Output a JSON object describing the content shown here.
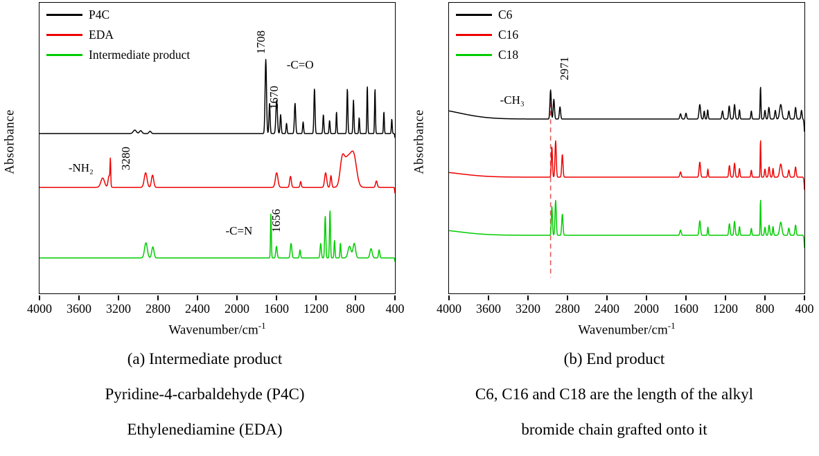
{
  "figure": {
    "background": "#ffffff",
    "panels": [
      {
        "key": "a",
        "ylabel": "Absorbance",
        "xlabel_base": "Wavenumber/cm",
        "xlabel_sup": "-1",
        "captions": [
          "(a) Intermediate product",
          "Pyridine-4-carbaldehyde (P4C)",
          "Ethylenediamine (EDA)"
        ]
      },
      {
        "key": "b",
        "ylabel": "Absorbance",
        "xlabel_base": "Wavenumber/cm",
        "xlabel_sup": "-1",
        "captions": [
          "(b) End product",
          "C6, C16 and C18 are the length of the alkyl",
          "bromide chain grafted onto it"
        ]
      }
    ]
  },
  "chart_data": [
    {
      "type": "line",
      "title": "(a) Intermediate product",
      "xlabel": "Wavenumber/cm-1",
      "ylabel": "Absorbance",
      "x_axis": {
        "min": 400,
        "max": 4000,
        "reversed": true,
        "ticks": [
          4000,
          3600,
          3200,
          2800,
          2400,
          2000,
          1600,
          1200,
          800,
          400
        ]
      },
      "y_axis": {
        "label": "Absorbance",
        "ticks_visible": false
      },
      "legend_position": "top-left",
      "grid": false,
      "peak_format": "[center_wavenumber_cm-1, relative_height_fraction_of_plot, width_cm-1]",
      "series": [
        {
          "name": "P4C",
          "color": "#000000",
          "baseline": 0.45,
          "peaks": [
            [
              3035,
              0.012,
              22
            ],
            [
              2975,
              0.01,
              18
            ],
            [
              2880,
              0.008,
              15
            ],
            [
              1708,
              0.255,
              10
            ],
            [
              1670,
              0.105,
              8
            ],
            [
              1598,
              0.115,
              11
            ],
            [
              1558,
              0.065,
              8
            ],
            [
              1498,
              0.035,
              7
            ],
            [
              1412,
              0.105,
              9
            ],
            [
              1330,
              0.04,
              7
            ],
            [
              1215,
              0.155,
              8
            ],
            [
              1125,
              0.065,
              7
            ],
            [
              1062,
              0.045,
              7
            ],
            [
              992,
              0.075,
              6
            ],
            [
              882,
              0.155,
              7
            ],
            [
              820,
              0.115,
              7
            ],
            [
              762,
              0.055,
              6
            ],
            [
              680,
              0.165,
              6
            ],
            [
              602,
              0.155,
              6
            ],
            [
              512,
              0.075,
              6
            ],
            [
              432,
              0.05,
              6
            ],
            [
              392,
              -0.04,
              8
            ]
          ]
        },
        {
          "name": "EDA",
          "color": "#ee0000",
          "baseline": 0.635,
          "peaks": [
            [
              3360,
              0.032,
              26
            ],
            [
              3295,
              0.04,
              14
            ],
            [
              3282,
              0.085,
              5
            ],
            [
              2925,
              0.05,
              20
            ],
            [
              2855,
              0.042,
              16
            ],
            [
              1598,
              0.05,
              18
            ],
            [
              1458,
              0.038,
              12
            ],
            [
              1355,
              0.02,
              9
            ],
            [
              1102,
              0.05,
              15
            ],
            [
              1048,
              0.04,
              10
            ],
            [
              935,
              0.075,
              30
            ],
            [
              878,
              0.1,
              55
            ],
            [
              815,
              0.09,
              40
            ],
            [
              588,
              0.022,
              12
            ],
            [
              392,
              -0.045,
              9
            ]
          ]
        },
        {
          "name": "Intermediate product",
          "color": "#00cc00",
          "baseline": 0.878,
          "peaks": [
            [
              2922,
              0.052,
              20
            ],
            [
              2852,
              0.038,
              16
            ],
            [
              1656,
              0.155,
              6
            ],
            [
              1600,
              0.04,
              10
            ],
            [
              1452,
              0.05,
              11
            ],
            [
              1362,
              0.028,
              8
            ],
            [
              1152,
              0.05,
              9
            ],
            [
              1106,
              0.145,
              8
            ],
            [
              1058,
              0.165,
              7
            ],
            [
              1012,
              0.06,
              7
            ],
            [
              952,
              0.05,
              7
            ],
            [
              860,
              0.04,
              22
            ],
            [
              812,
              0.05,
              18
            ],
            [
              642,
              0.032,
              16
            ],
            [
              560,
              0.028,
              9
            ],
            [
              392,
              -0.035,
              8
            ]
          ]
        }
      ],
      "annotations": [
        {
          "text": "1708",
          "x": 1758,
          "y": 0.135,
          "rotate": true
        },
        {
          "text": "-C=O",
          "x": 1360,
          "y": 0.215,
          "rotate": false
        },
        {
          "text": "1670",
          "x": 1620,
          "y": 0.325,
          "rotate": true
        },
        {
          "text": "-NH₂",
          "x": 3580,
          "y": 0.568,
          "rotate": false
        },
        {
          "text": "3280",
          "x": 3120,
          "y": 0.535,
          "rotate": true
        },
        {
          "text": "-C=N",
          "x": 1980,
          "y": 0.785,
          "rotate": false
        },
        {
          "text": "1656",
          "x": 1600,
          "y": 0.75,
          "rotate": true
        }
      ],
      "marker_line": null
    },
    {
      "type": "line",
      "title": "(b) End product",
      "xlabel": "Wavenumber/cm-1",
      "ylabel": "Absorbance",
      "x_axis": {
        "min": 400,
        "max": 4000,
        "reversed": true,
        "ticks": [
          4000,
          3600,
          3200,
          2800,
          2400,
          2000,
          1600,
          1200,
          800,
          400
        ]
      },
      "y_axis": {
        "label": "Absorbance",
        "ticks_visible": false
      },
      "legend_position": "top-left",
      "grid": false,
      "peak_format": "[center_wavenumber_cm-1, relative_height_fraction_of_plot, width_cm-1]",
      "series": [
        {
          "name": "C6",
          "color": "#000000",
          "baseline": 0.4,
          "peaks": [
            [
              4200,
              0.035,
              420
            ],
            [
              2971,
              0.1,
              9
            ],
            [
              2938,
              0.068,
              9
            ],
            [
              2876,
              0.042,
              9
            ],
            [
              1655,
              0.018,
              10
            ],
            [
              1600,
              0.02,
              9
            ],
            [
              1460,
              0.05,
              11
            ],
            [
              1415,
              0.028,
              7
            ],
            [
              1380,
              0.032,
              7
            ],
            [
              1230,
              0.028,
              9
            ],
            [
              1162,
              0.045,
              9
            ],
            [
              1108,
              0.05,
              9
            ],
            [
              1058,
              0.032,
              7
            ],
            [
              938,
              0.028,
              7
            ],
            [
              845,
              0.112,
              6
            ],
            [
              800,
              0.03,
              8
            ],
            [
              760,
              0.04,
              9
            ],
            [
              695,
              0.03,
              9
            ],
            [
              640,
              0.05,
              16
            ],
            [
              558,
              0.028,
              9
            ],
            [
              490,
              0.04,
              9
            ],
            [
              430,
              0.03,
              8
            ],
            [
              390,
              -0.1,
              11
            ]
          ]
        },
        {
          "name": "C16",
          "color": "#ee0000",
          "baseline": 0.6,
          "peaks": [
            [
              4200,
              0.02,
              420
            ],
            [
              2958,
              0.105,
              8
            ],
            [
              2920,
              0.125,
              9
            ],
            [
              2852,
              0.078,
              9
            ],
            [
              1655,
              0.018,
              10
            ],
            [
              1460,
              0.052,
              10
            ],
            [
              1378,
              0.028,
              6
            ],
            [
              1160,
              0.04,
              9
            ],
            [
              1108,
              0.048,
              9
            ],
            [
              1058,
              0.03,
              7
            ],
            [
              938,
              0.024,
              7
            ],
            [
              845,
              0.13,
              5
            ],
            [
              800,
              0.028,
              8
            ],
            [
              758,
              0.035,
              9
            ],
            [
              718,
              0.03,
              7
            ],
            [
              640,
              0.045,
              16
            ],
            [
              558,
              0.025,
              9
            ],
            [
              490,
              0.035,
              9
            ],
            [
              390,
              -0.1,
              11
            ]
          ]
        },
        {
          "name": "C18",
          "color": "#00cc00",
          "baseline": 0.8,
          "peaks": [
            [
              4200,
              0.02,
              420
            ],
            [
              2958,
              0.1,
              8
            ],
            [
              2920,
              0.12,
              9
            ],
            [
              2852,
              0.073,
              9
            ],
            [
              1655,
              0.018,
              10
            ],
            [
              1460,
              0.05,
              10
            ],
            [
              1378,
              0.028,
              6
            ],
            [
              1160,
              0.04,
              9
            ],
            [
              1108,
              0.048,
              9
            ],
            [
              1058,
              0.03,
              7
            ],
            [
              938,
              0.024,
              7
            ],
            [
              845,
              0.125,
              5
            ],
            [
              800,
              0.028,
              8
            ],
            [
              758,
              0.035,
              9
            ],
            [
              718,
              0.03,
              7
            ],
            [
              640,
              0.045,
              16
            ],
            [
              558,
              0.025,
              9
            ],
            [
              490,
              0.035,
              9
            ],
            [
              390,
              -0.1,
              11
            ]
          ]
        }
      ],
      "annotations": [
        {
          "text": "-CH₃",
          "x": 3360,
          "y": 0.335,
          "rotate": false
        },
        {
          "text": "2971",
          "x": 2830,
          "y": 0.225,
          "rotate": true
        }
      ],
      "marker_line": {
        "x": 2971,
        "y1": 0.315,
        "y2": 0.945,
        "color": "#e05b5b",
        "dashed": true
      }
    }
  ]
}
